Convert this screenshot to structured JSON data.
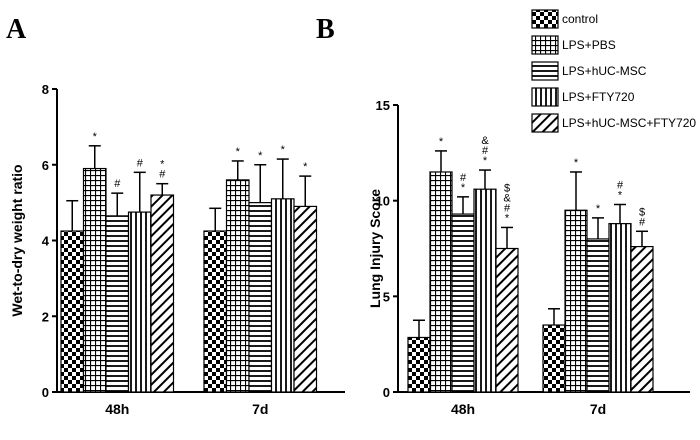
{
  "legend": [
    {
      "label": "control",
      "pattern": "checker"
    },
    {
      "label": "LPS+PBS",
      "pattern": "grid"
    },
    {
      "label": "LPS+hUC-MSC",
      "pattern": "hlines"
    },
    {
      "label": "LPS+FTY720",
      "pattern": "vlines"
    },
    {
      "label": "LPS+hUC-MSC+FTY720",
      "pattern": "diag"
    }
  ],
  "chart_data": [
    {
      "type": "bar",
      "panel": "A",
      "ylabel": "Wet-to-dry weight  ratio",
      "xlabel": "",
      "ylim": [
        0,
        8
      ],
      "yticks": [
        0,
        2,
        4,
        6,
        8
      ],
      "categories": [
        "48h",
        "7d"
      ],
      "series": [
        {
          "name": "control",
          "values": [
            4.25,
            4.25
          ],
          "errors": [
            0.8,
            0.6
          ],
          "marks": [
            "",
            ""
          ]
        },
        {
          "name": "LPS+PBS",
          "values": [
            5.9,
            5.6
          ],
          "errors": [
            0.6,
            0.5
          ],
          "marks": [
            "*",
            "*"
          ]
        },
        {
          "name": "LPS+hUC-MSC",
          "values": [
            4.65,
            5.0
          ],
          "errors": [
            0.6,
            1.0
          ],
          "marks": [
            "#",
            "*"
          ]
        },
        {
          "name": "LPS+FTY720",
          "values": [
            4.75,
            5.1
          ],
          "errors": [
            1.05,
            1.05
          ],
          "marks": [
            "#",
            "*"
          ]
        },
        {
          "name": "LPS+hUC-MSC+FTY720",
          "values": [
            5.2,
            4.9
          ],
          "errors": [
            0.3,
            0.8
          ],
          "marks": [
            "* #",
            "*"
          ]
        }
      ]
    },
    {
      "type": "bar",
      "panel": "B",
      "ylabel": "Lung Injury Score",
      "xlabel": "",
      "ylim": [
        0,
        15
      ],
      "yticks": [
        0,
        5,
        10,
        15
      ],
      "categories": [
        "48h",
        "7d"
      ],
      "series": [
        {
          "name": "control",
          "values": [
            2.85,
            3.5
          ],
          "errors": [
            0.9,
            0.85
          ],
          "marks": [
            "",
            ""
          ]
        },
        {
          "name": "LPS+PBS",
          "values": [
            11.5,
            9.5
          ],
          "errors": [
            1.1,
            2.0
          ],
          "marks": [
            "*",
            "*"
          ]
        },
        {
          "name": "LPS+hUC-MSC",
          "values": [
            9.3,
            8.0
          ],
          "errors": [
            0.9,
            1.1
          ],
          "marks": [
            "# *",
            "*"
          ]
        },
        {
          "name": "LPS+FTY720",
          "values": [
            10.6,
            8.8
          ],
          "errors": [
            1.0,
            1.0
          ],
          "marks": [
            "& # *",
            "# *"
          ]
        },
        {
          "name": "LPS+hUC-MSC+FTY720",
          "values": [
            7.5,
            7.6
          ],
          "errors": [
            1.1,
            0.8
          ],
          "marks": [
            "$ & # *",
            "$ #"
          ]
        }
      ]
    }
  ]
}
